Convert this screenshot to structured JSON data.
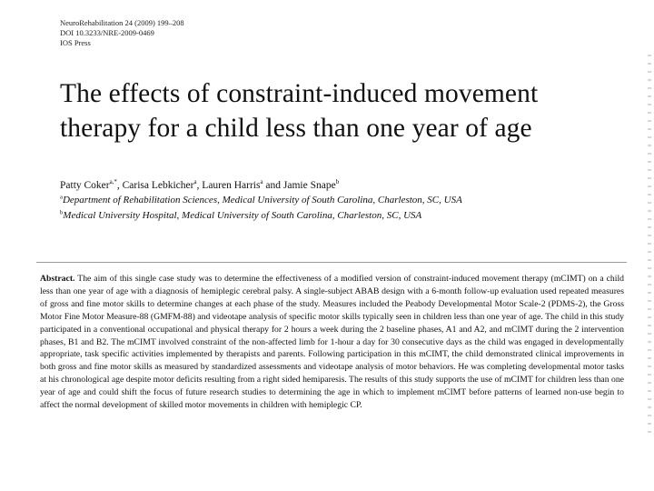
{
  "header": {
    "journal": "NeuroRehabilitation 24 (2009) 199–208",
    "doi": "DOI 10.3233/NRE-2009-0469",
    "publisher": "IOS Press"
  },
  "title_lines": [
    "The effects of constraint-induced movement",
    "therapy for a child less than one year of age"
  ],
  "authors": [
    {
      "name": "Patty Coker",
      "sup": "a,*"
    },
    {
      "name": "Carisa Lebkicher",
      "sup": "a"
    },
    {
      "name": "Lauren Harris",
      "sup": "a"
    },
    {
      "name": "Jamie Snape",
      "sup": "b"
    }
  ],
  "affiliations": [
    {
      "mark": "a",
      "text": "Department of Rehabilitation Sciences, Medical University of South Carolina, Charleston, SC, USA"
    },
    {
      "mark": "b",
      "text": "Medical University Hospital, Medical University of South Carolina, Charleston, SC, USA"
    }
  ],
  "abstract": {
    "label": "Abstract.",
    "text": "The aim of this single case study was to determine the effectiveness of a modified version of constraint-induced movement therapy (mCIMT) on a child less than one year of age with a diagnosis of hemiplegic cerebral palsy. A single-subject ABAB design with a 6-month follow-up evaluation used repeated measures of gross and fine motor skills to determine changes at each phase of the study. Measures included the Peabody Developmental Motor Scale-2 (PDMS-2), the Gross Motor Fine Motor Measure-88 (GMFM-88) and videotape analysis of specific motor skills typically seen in children less than one year of age. The child in this study participated in a conventional occupational and physical therapy for 2 hours a week during the 2 baseline phases, A1 and A2, and mCIMT during the 2 intervention phases, B1 and B2. The mCIMT involved constraint of the non-affected limb for 1-hour a day for 30 consecutive days as the child was engaged in developmentally appropriate, task specific activities implemented by therapists and parents. Following participation in this mCIMT, the child demonstrated clinical improvements in both gross and fine motor skills as measured by standardized assessments and videotape analysis of motor behaviors. He was completing developmental motor tasks at his chronological age despite motor deficits resulting from a right sided hemiparesis. The results of this study supports the use of mCIMT for children less than one year of age and could shift the focus of future research studies to determining the age in which to implement mCIMT before patterns of learned non-use begin to affect the normal development of skilled motor movements in children with hemiplegic CP."
  }
}
